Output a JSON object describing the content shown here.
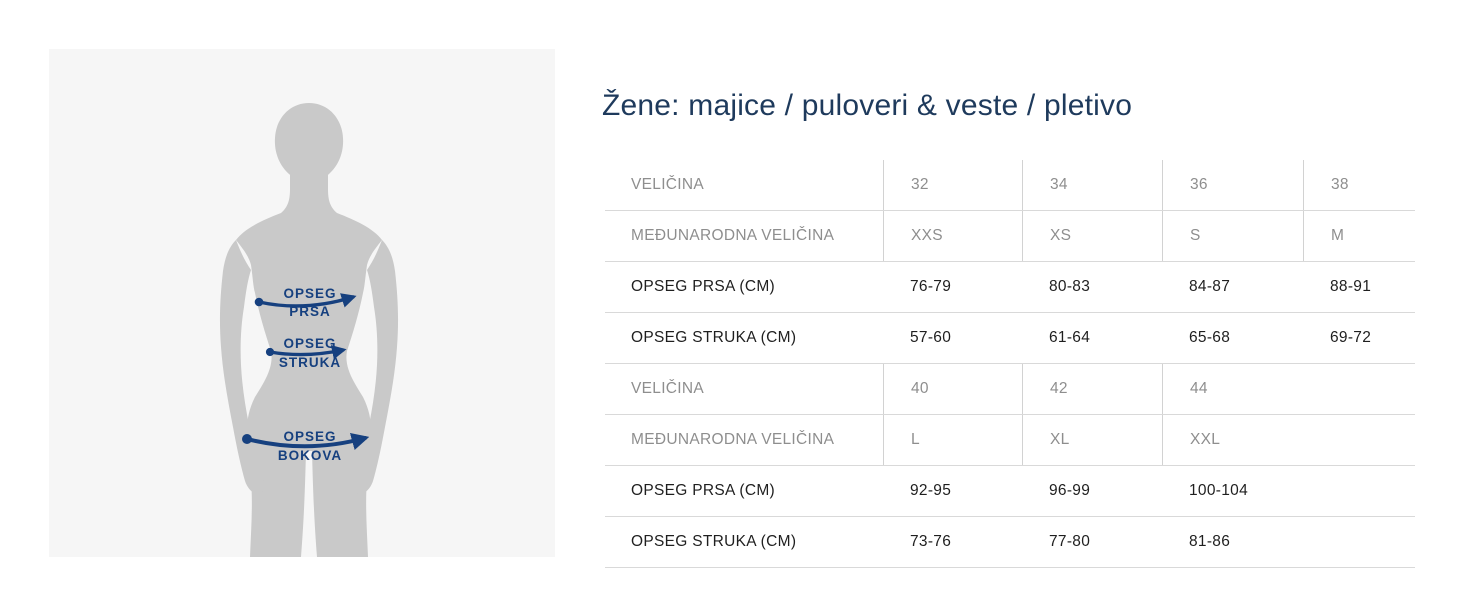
{
  "title": "Žene: majice / puloveri & veste / pletivo",
  "diagram": {
    "chest": {
      "line1": "OPSEG",
      "line2": "PRSA"
    },
    "waist": {
      "line1": "OPSEG",
      "line2": "STRUKA"
    },
    "hips": {
      "line1": "OPSEG",
      "line2": "BOKOVA"
    }
  },
  "table": {
    "rows": [
      {
        "label": "VELIČINA",
        "values": [
          "32",
          "34",
          "36",
          "38"
        ],
        "style": "muted"
      },
      {
        "label": "MEĐUNARODNA VELIČINA",
        "values": [
          "XXS",
          "XS",
          "S",
          "M"
        ],
        "style": "muted"
      },
      {
        "label": "OPSEG PRSA (CM)",
        "values": [
          "76-79",
          "80-83",
          "84-87",
          "88-91"
        ],
        "style": "strong"
      },
      {
        "label": "OPSEG STRUKA (CM)",
        "values": [
          "57-60",
          "61-64",
          "65-68",
          "69-72"
        ],
        "style": "strong"
      },
      {
        "label": "VELIČINA",
        "values": [
          "40",
          "42",
          "44"
        ],
        "style": "muted"
      },
      {
        "label": "MEĐUNARODNA VELIČINA",
        "values": [
          "L",
          "XL",
          "XXL"
        ],
        "style": "muted"
      },
      {
        "label": "OPSEG PRSA (CM)",
        "values": [
          "92-95",
          "96-99",
          "100-104"
        ],
        "style": "strong"
      },
      {
        "label": "OPSEG STRUKA (CM)",
        "values": [
          "73-76",
          "77-80",
          "81-86"
        ],
        "style": "strong"
      }
    ]
  },
  "colors": {
    "title_navy": "#1e3a5c",
    "diagram_navy": "#16407f",
    "panel_bg": "#f6f6f6",
    "silhouette_gray": "#c9c9c9",
    "muted_text": "#8e8e8e",
    "strong_text": "#1f1f1f",
    "grid_line": "#d9d9d9"
  }
}
